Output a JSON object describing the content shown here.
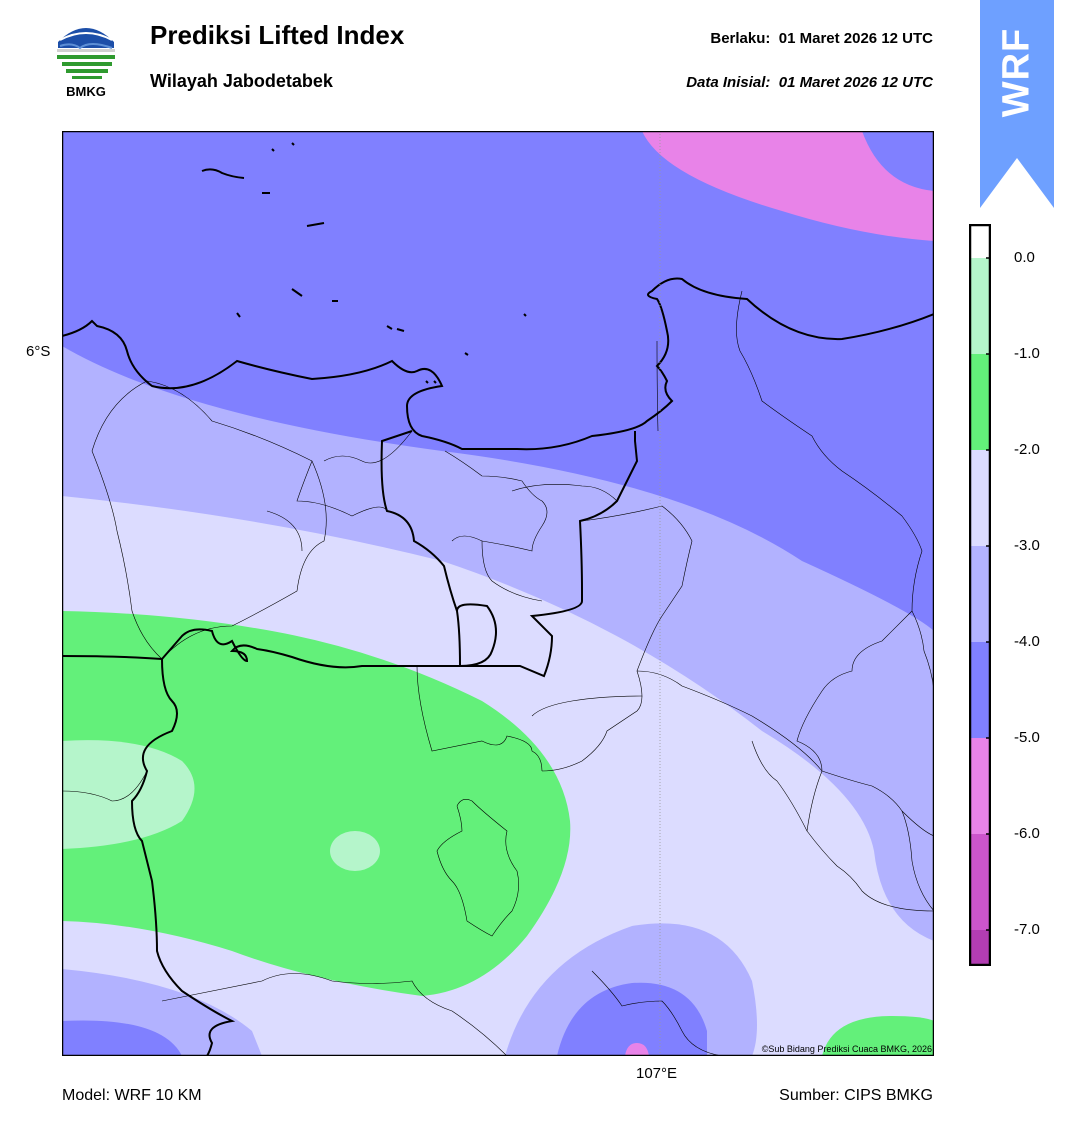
{
  "header": {
    "logo_text": "BMKG",
    "title": "Prediksi Lifted Index",
    "subtitle": "Wilayah Jabodetabek",
    "valid_label": "Berlaku:",
    "valid_time": "01 Maret 2026 12 UTC",
    "init_label": "Data Inisial:",
    "init_time": "01 Maret 2026 12 UTC",
    "badge_text": "WRF"
  },
  "map": {
    "lat_label": "6°S",
    "lon_label": "107°E",
    "copyright": "©Sub Bidang Prediksi Cuaca BMKG, 2026"
  },
  "colorbar": {
    "ticks": [
      "0.0",
      "-1.0",
      "-2.0",
      "-3.0",
      "-4.0",
      "-5.0",
      "-6.0",
      "-7.0"
    ],
    "level_colors": [
      "#ffffff",
      "#b5f5cb",
      "#63f07a",
      "#dcdcff",
      "#b2b2ff",
      "#8080ff",
      "#e883e8",
      "#cc55cc",
      "#b23db2",
      "#8b1f8b"
    ]
  },
  "footer": {
    "model": "Model: WRF 10 KM",
    "source": "Sumber: CIPS BMKG"
  }
}
